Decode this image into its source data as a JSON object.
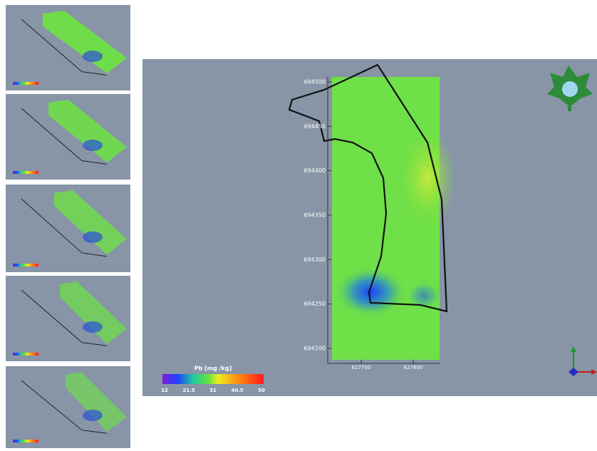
{
  "main_view": {
    "yticks": [
      694500,
      694450,
      694400,
      694350,
      694300,
      694250,
      694200
    ],
    "xticks": [
      627750,
      627800
    ],
    "colorbar": {
      "title": "Pb [mg /kg]",
      "ticks": [
        12,
        21.5,
        31,
        40.5,
        50
      ]
    }
  }
}
